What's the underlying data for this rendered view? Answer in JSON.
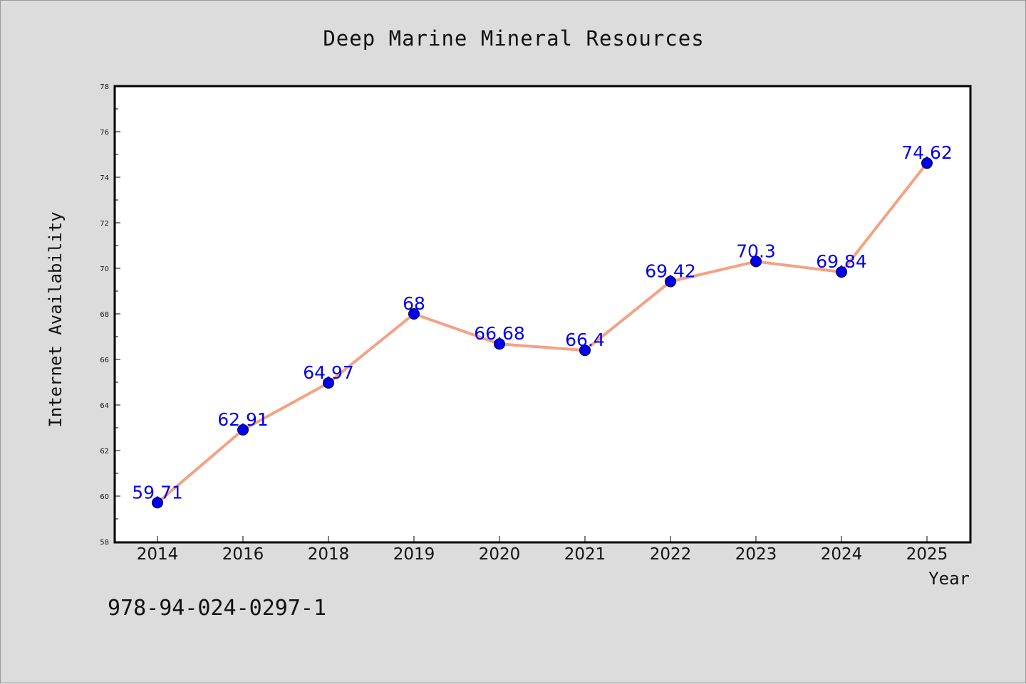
{
  "chart_data": {
    "type": "line",
    "title": "Deep Marine Mineral Resources",
    "xlabel": "Year",
    "ylabel": "Internet Availability",
    "categories": [
      "2014",
      "2016",
      "2018",
      "2019",
      "2020",
      "2021",
      "2022",
      "2023",
      "2024",
      "2025"
    ],
    "series": [
      {
        "values": [
          59.71,
          62.91,
          64.97,
          68,
          66.68,
          66.4,
          69.42,
          70.3,
          69.84,
          74.62
        ]
      }
    ],
    "data_labels": [
      "59.71",
      "62.91",
      "64.97",
      "68",
      "66.68",
      "66.4",
      "69.42",
      "70.3",
      "69.84",
      "74.62"
    ],
    "ylim": [
      58,
      78
    ],
    "yticks": [
      58,
      60,
      62,
      64,
      66,
      68,
      70,
      72,
      74,
      76,
      78
    ],
    "grid": false,
    "line_color": "#f4a283",
    "marker_color": "#0000ee",
    "label_color": "#0000ee"
  },
  "footer": {
    "code": "978-94-024-0297-1"
  }
}
